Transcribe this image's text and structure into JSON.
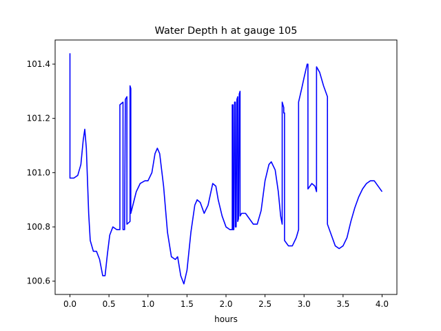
{
  "chart_data": {
    "type": "line",
    "title": "Water Depth h at gauge 105",
    "xlabel": "hours",
    "ylabel": "",
    "xlim": [
      -0.19,
      4.19
    ],
    "ylim": [
      100.551,
      101.489
    ],
    "xticks": [
      0.0,
      0.5,
      1.0,
      1.5,
      2.0,
      2.5,
      3.0,
      3.5,
      4.0
    ],
    "xtick_labels": [
      "0.0",
      "0.5",
      "1.0",
      "1.5",
      "2.0",
      "2.5",
      "3.0",
      "3.5",
      "4.0"
    ],
    "yticks": [
      100.6,
      100.8,
      101.0,
      101.2,
      101.4
    ],
    "ytick_labels": [
      "100.6",
      "100.8",
      "101.0",
      "101.2",
      "101.4"
    ],
    "grid": false,
    "series": [
      {
        "color": "#0000ff",
        "points": [
          [
            0.0,
            101.44
          ],
          [
            0.0,
            100.98
          ],
          [
            0.05,
            100.98
          ],
          [
            0.1,
            100.99
          ],
          [
            0.14,
            101.03
          ],
          [
            0.17,
            101.12
          ],
          [
            0.19,
            101.16
          ],
          [
            0.21,
            101.09
          ],
          [
            0.24,
            100.85
          ],
          [
            0.26,
            100.75
          ],
          [
            0.3,
            100.71
          ],
          [
            0.34,
            100.71
          ],
          [
            0.38,
            100.68
          ],
          [
            0.42,
            100.62
          ],
          [
            0.45,
            100.62
          ],
          [
            0.48,
            100.7
          ],
          [
            0.51,
            100.77
          ],
          [
            0.55,
            100.8
          ],
          [
            0.6,
            100.79
          ],
          [
            0.64,
            100.79
          ],
          [
            0.64,
            101.25
          ],
          [
            0.68,
            101.26
          ],
          [
            0.68,
            100.79
          ],
          [
            0.7,
            100.79
          ],
          [
            0.71,
            101.27
          ],
          [
            0.73,
            101.28
          ],
          [
            0.73,
            100.81
          ],
          [
            0.77,
            100.82
          ],
          [
            0.77,
            101.32
          ],
          [
            0.78,
            101.31
          ],
          [
            0.78,
            100.85
          ],
          [
            0.85,
            100.93
          ],
          [
            0.9,
            100.96
          ],
          [
            0.96,
            100.97
          ],
          [
            1.0,
            100.97
          ],
          [
            1.05,
            101.0
          ],
          [
            1.09,
            101.07
          ],
          [
            1.12,
            101.09
          ],
          [
            1.15,
            101.07
          ],
          [
            1.2,
            100.95
          ],
          [
            1.25,
            100.78
          ],
          [
            1.3,
            100.69
          ],
          [
            1.35,
            100.68
          ],
          [
            1.38,
            100.69
          ],
          [
            1.42,
            100.62
          ],
          [
            1.46,
            100.59
          ],
          [
            1.5,
            100.64
          ],
          [
            1.55,
            100.78
          ],
          [
            1.6,
            100.88
          ],
          [
            1.63,
            100.9
          ],
          [
            1.67,
            100.89
          ],
          [
            1.72,
            100.85
          ],
          [
            1.77,
            100.88
          ],
          [
            1.83,
            100.96
          ],
          [
            1.87,
            100.95
          ],
          [
            1.9,
            100.9
          ],
          [
            1.95,
            100.84
          ],
          [
            2.0,
            100.8
          ],
          [
            2.05,
            100.79
          ],
          [
            2.08,
            100.79
          ],
          [
            2.08,
            101.25
          ],
          [
            2.09,
            101.25
          ],
          [
            2.09,
            100.79
          ],
          [
            2.1,
            100.79
          ],
          [
            2.11,
            101.26
          ],
          [
            2.12,
            101.26
          ],
          [
            2.12,
            100.8
          ],
          [
            2.13,
            100.8
          ],
          [
            2.14,
            101.27
          ],
          [
            2.15,
            101.28
          ],
          [
            2.15,
            100.82
          ],
          [
            2.16,
            100.83
          ],
          [
            2.17,
            101.29
          ],
          [
            2.18,
            101.3
          ],
          [
            2.18,
            100.84
          ],
          [
            2.2,
            100.85
          ],
          [
            2.25,
            100.85
          ],
          [
            2.3,
            100.83
          ],
          [
            2.35,
            100.81
          ],
          [
            2.4,
            100.81
          ],
          [
            2.45,
            100.86
          ],
          [
            2.5,
            100.97
          ],
          [
            2.55,
            101.03
          ],
          [
            2.58,
            101.04
          ],
          [
            2.63,
            101.01
          ],
          [
            2.67,
            100.93
          ],
          [
            2.7,
            100.84
          ],
          [
            2.72,
            100.81
          ],
          [
            2.72,
            101.26
          ],
          [
            2.74,
            101.24
          ],
          [
            2.74,
            101.22
          ],
          [
            2.75,
            101.22
          ],
          [
            2.75,
            100.75
          ],
          [
            2.8,
            100.73
          ],
          [
            2.85,
            100.73
          ],
          [
            2.9,
            100.76
          ],
          [
            2.93,
            100.79
          ],
          [
            2.93,
            101.26
          ],
          [
            2.97,
            101.31
          ],
          [
            3.0,
            101.35
          ],
          [
            3.04,
            101.4
          ],
          [
            3.05,
            101.4
          ],
          [
            3.05,
            100.94
          ],
          [
            3.1,
            100.96
          ],
          [
            3.14,
            100.95
          ],
          [
            3.16,
            100.93
          ],
          [
            3.16,
            101.39
          ],
          [
            3.2,
            101.37
          ],
          [
            3.25,
            101.32
          ],
          [
            3.3,
            101.28
          ],
          [
            3.3,
            100.81
          ],
          [
            3.35,
            100.77
          ],
          [
            3.4,
            100.73
          ],
          [
            3.45,
            100.72
          ],
          [
            3.5,
            100.73
          ],
          [
            3.55,
            100.76
          ],
          [
            3.6,
            100.82
          ],
          [
            3.65,
            100.87
          ],
          [
            3.7,
            100.91
          ],
          [
            3.75,
            100.94
          ],
          [
            3.8,
            100.96
          ],
          [
            3.85,
            100.97
          ],
          [
            3.9,
            100.97
          ],
          [
            3.95,
            100.95
          ],
          [
            4.0,
            100.93
          ]
        ]
      }
    ]
  }
}
